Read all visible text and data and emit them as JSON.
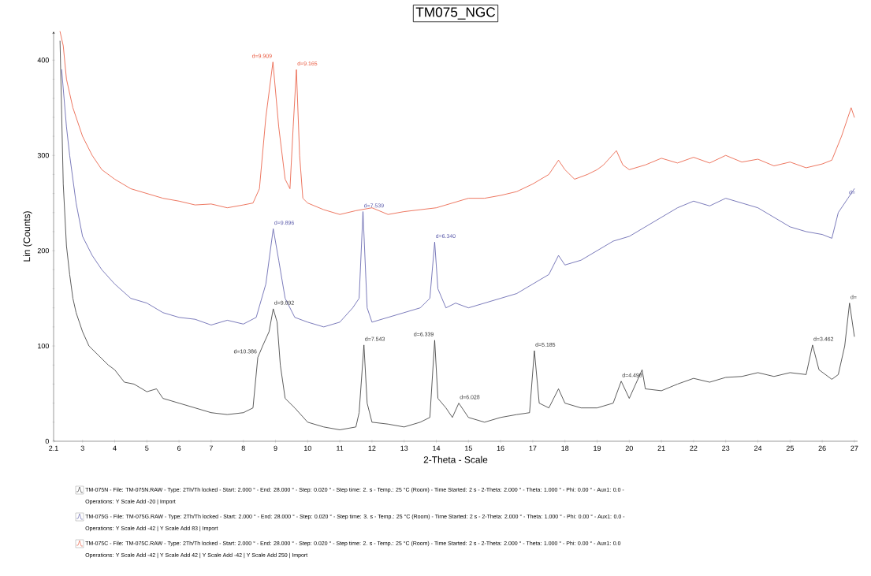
{
  "chart_data": {
    "type": "line",
    "title": "TM075_NGC",
    "xlabel": "2-Theta - Scale",
    "ylabel": "Lin (Counts)",
    "xlim": [
      2.1,
      27.1
    ],
    "ylim": [
      0,
      430
    ],
    "xticks": [
      2.1,
      3,
      4,
      5,
      6,
      7,
      8,
      9,
      10,
      11,
      12,
      13,
      14,
      15,
      16,
      17,
      18,
      19,
      20,
      21,
      22,
      23,
      24,
      25,
      26,
      27
    ],
    "yticks": [
      0,
      100,
      200,
      300,
      400
    ],
    "legend": "bottom",
    "marker": "none",
    "line_style": "solid",
    "series": [
      {
        "name": "TM-075N - File: TM-075N.RAW - Type: 2Th/Th locked - Start: 2.000 ° - End: 28.000 ° - Step: 0.020 ° - Step time: 2. s - Temp.: 25 °C (Room) - Time Started: 2 s - 2-Theta: 2.000 ° - Theta: 1.000 ° - Phi: 0.00 ° - Aux1: 0.0 -",
        "color": "#333333",
        "x": [
          2.3,
          2.4,
          2.5,
          2.6,
          2.7,
          2.8,
          3.0,
          3.2,
          3.5,
          3.8,
          4.0,
          4.3,
          4.6,
          5.0,
          5.3,
          5.5,
          6.0,
          6.5,
          7.0,
          7.5,
          8.0,
          8.3,
          8.45,
          8.6,
          8.8,
          8.93,
          9.05,
          9.15,
          9.3,
          9.6,
          10.0,
          10.5,
          11.0,
          11.5,
          11.6,
          11.75,
          11.85,
          12.0,
          12.5,
          13.0,
          13.5,
          13.8,
          13.95,
          14.05,
          14.3,
          14.5,
          14.7,
          15.0,
          15.5,
          16.0,
          16.5,
          16.9,
          17.05,
          17.2,
          17.5,
          17.8,
          18.0,
          18.5,
          19.0,
          19.5,
          19.75,
          20.0,
          20.4,
          20.5,
          21.0,
          21.5,
          22.0,
          22.5,
          23.0,
          23.5,
          24.0,
          24.5,
          25.0,
          25.5,
          25.7,
          25.9,
          26.3,
          26.5,
          26.7,
          26.85,
          27.0
        ],
        "values": [
          420,
          270,
          205,
          175,
          150,
          135,
          115,
          100,
          90,
          80,
          75,
          62,
          60,
          52,
          55,
          45,
          40,
          35,
          30,
          28,
          30,
          35,
          88,
          100,
          115,
          139,
          125,
          80,
          45,
          35,
          20,
          15,
          12,
          15,
          30,
          101,
          40,
          20,
          18,
          15,
          20,
          25,
          106,
          45,
          35,
          25,
          40,
          25,
          20,
          25,
          28,
          30,
          95,
          40,
          35,
          55,
          40,
          35,
          35,
          40,
          63,
          45,
          75,
          55,
          53,
          60,
          66,
          62,
          67,
          68,
          72,
          68,
          72,
          70,
          101,
          75,
          65,
          70,
          100,
          145,
          110
        ]
      },
      {
        "name": "TM-075G - File: TM-075G.RAW - Type: 2Th/Th locked - Start: 2.000 ° - End: 28.000 ° - Step: 0.020 ° - Step time: 3. s - Temp.: 25 °C (Room) - Time Started: 2 s - 2-Theta: 2.000 ° - Theta: 1.000 ° - Phi: 0.00 ° - Aux1: 0.0 -",
        "color": "#5a5aaa",
        "x": [
          2.35,
          2.5,
          2.6,
          2.8,
          3.0,
          3.3,
          3.6,
          4.0,
          4.5,
          5.0,
          5.5,
          6.0,
          6.5,
          7.0,
          7.5,
          8.0,
          8.4,
          8.7,
          8.93,
          9.1,
          9.3,
          9.6,
          10.0,
          10.5,
          11.0,
          11.4,
          11.6,
          11.72,
          11.85,
          12.0,
          12.5,
          13.0,
          13.5,
          13.8,
          13.95,
          14.05,
          14.3,
          14.6,
          15.0,
          15.5,
          16.0,
          16.5,
          17.0,
          17.5,
          17.8,
          18.0,
          18.5,
          19.0,
          19.5,
          20.0,
          20.5,
          21.0,
          21.5,
          22.0,
          22.5,
          23.0,
          23.5,
          24.0,
          24.5,
          25.0,
          25.5,
          26.0,
          26.3,
          26.5,
          26.8,
          27.0
        ],
        "values": [
          390,
          330,
          300,
          250,
          215,
          195,
          180,
          165,
          150,
          145,
          135,
          130,
          128,
          122,
          127,
          123,
          130,
          165,
          223,
          190,
          150,
          130,
          125,
          120,
          125,
          140,
          150,
          241,
          140,
          125,
          130,
          135,
          140,
          150,
          209,
          160,
          140,
          145,
          140,
          145,
          150,
          155,
          165,
          175,
          195,
          185,
          190,
          200,
          210,
          215,
          225,
          235,
          245,
          252,
          247,
          255,
          250,
          245,
          235,
          225,
          220,
          217,
          213,
          240,
          255,
          265
        ]
      },
      {
        "name": "TM-075C - File: TM-075C.RAW - Type: 2Th/Th locked - Start: 2.000 ° - End: 28.000 ° - Step: 0.020 ° - Step time: 2. s - Temp.: 25 °C (Room) - Time Started: 2 s - 2-Theta: 2.000 ° - Theta: 1.000 ° - Phi: 0.00 ° - Aux1: 0.0",
        "color": "#e8553a",
        "x": [
          2.3,
          2.4,
          2.5,
          2.7,
          3.0,
          3.3,
          3.6,
          4.0,
          4.5,
          5.0,
          5.5,
          6.0,
          6.5,
          7.0,
          7.5,
          8.0,
          8.3,
          8.5,
          8.7,
          8.92,
          9.1,
          9.3,
          9.45,
          9.55,
          9.65,
          9.75,
          9.85,
          10.0,
          10.5,
          11.0,
          11.5,
          12.0,
          12.5,
          13.0,
          13.5,
          14.0,
          14.5,
          15.0,
          15.5,
          16.0,
          16.5,
          17.0,
          17.5,
          17.8,
          18.0,
          18.3,
          18.7,
          19.0,
          19.2,
          19.6,
          19.8,
          20.0,
          20.5,
          21.0,
          21.5,
          22.0,
          22.5,
          23.0,
          23.5,
          24.0,
          24.5,
          25.0,
          25.5,
          26.0,
          26.3,
          26.6,
          26.9,
          27.0
        ],
        "values": [
          430,
          415,
          380,
          350,
          320,
          300,
          285,
          275,
          265,
          260,
          255,
          252,
          248,
          249,
          245,
          248,
          250,
          265,
          340,
          398,
          330,
          275,
          265,
          330,
          390,
          300,
          255,
          250,
          243,
          238,
          242,
          245,
          238,
          241,
          243,
          245,
          250,
          255,
          255,
          258,
          262,
          270,
          280,
          295,
          285,
          275,
          280,
          285,
          290,
          305,
          290,
          285,
          290,
          297,
          292,
          298,
          292,
          300,
          293,
          296,
          289,
          293,
          287,
          291,
          295,
          320,
          350,
          340
        ]
      }
    ],
    "annotations": [
      "Operations: Y Scale Add -20 | Import",
      "Operations: Y Scale Add -42 | Y Scale Add 83 | Import",
      "Operations: Y Scale Add -42 | Y Scale Add 42 | Y Scale Add -42 | Y Scale Add 250 | Import",
      {
        "text": "d=9.909",
        "x": 8.92,
        "y": 398
      },
      {
        "text": "d=9.165",
        "x": 9.65,
        "y": 390
      },
      {
        "text": "d=9.896",
        "x": 8.93,
        "y": 223
      },
      {
        "text": "d=7.539",
        "x": 11.72,
        "y": 241
      },
      {
        "text": "d=6.340",
        "x": 13.95,
        "y": 209
      },
      {
        "text": "d=10.386",
        "x": 8.45,
        "y": 88
      },
      {
        "text": "d=9.892",
        "x": 8.93,
        "y": 139
      },
      {
        "text": "d=7.543",
        "x": 11.75,
        "y": 101
      },
      {
        "text": "d=6.339",
        "x": 13.95,
        "y": 106
      },
      {
        "text": "d=6.028",
        "x": 14.7,
        "y": 40
      },
      {
        "text": "d=5.185",
        "x": 17.05,
        "y": 95
      },
      {
        "text": "d=4.498",
        "x": 19.75,
        "y": 63
      },
      {
        "text": "d=3.462",
        "x": 25.7,
        "y": 101
      },
      {
        "text": "d=",
        "x": 26.85,
        "y": 145
      },
      {
        "text": "d=",
        "x": 26.8,
        "y": 255
      }
    ]
  }
}
